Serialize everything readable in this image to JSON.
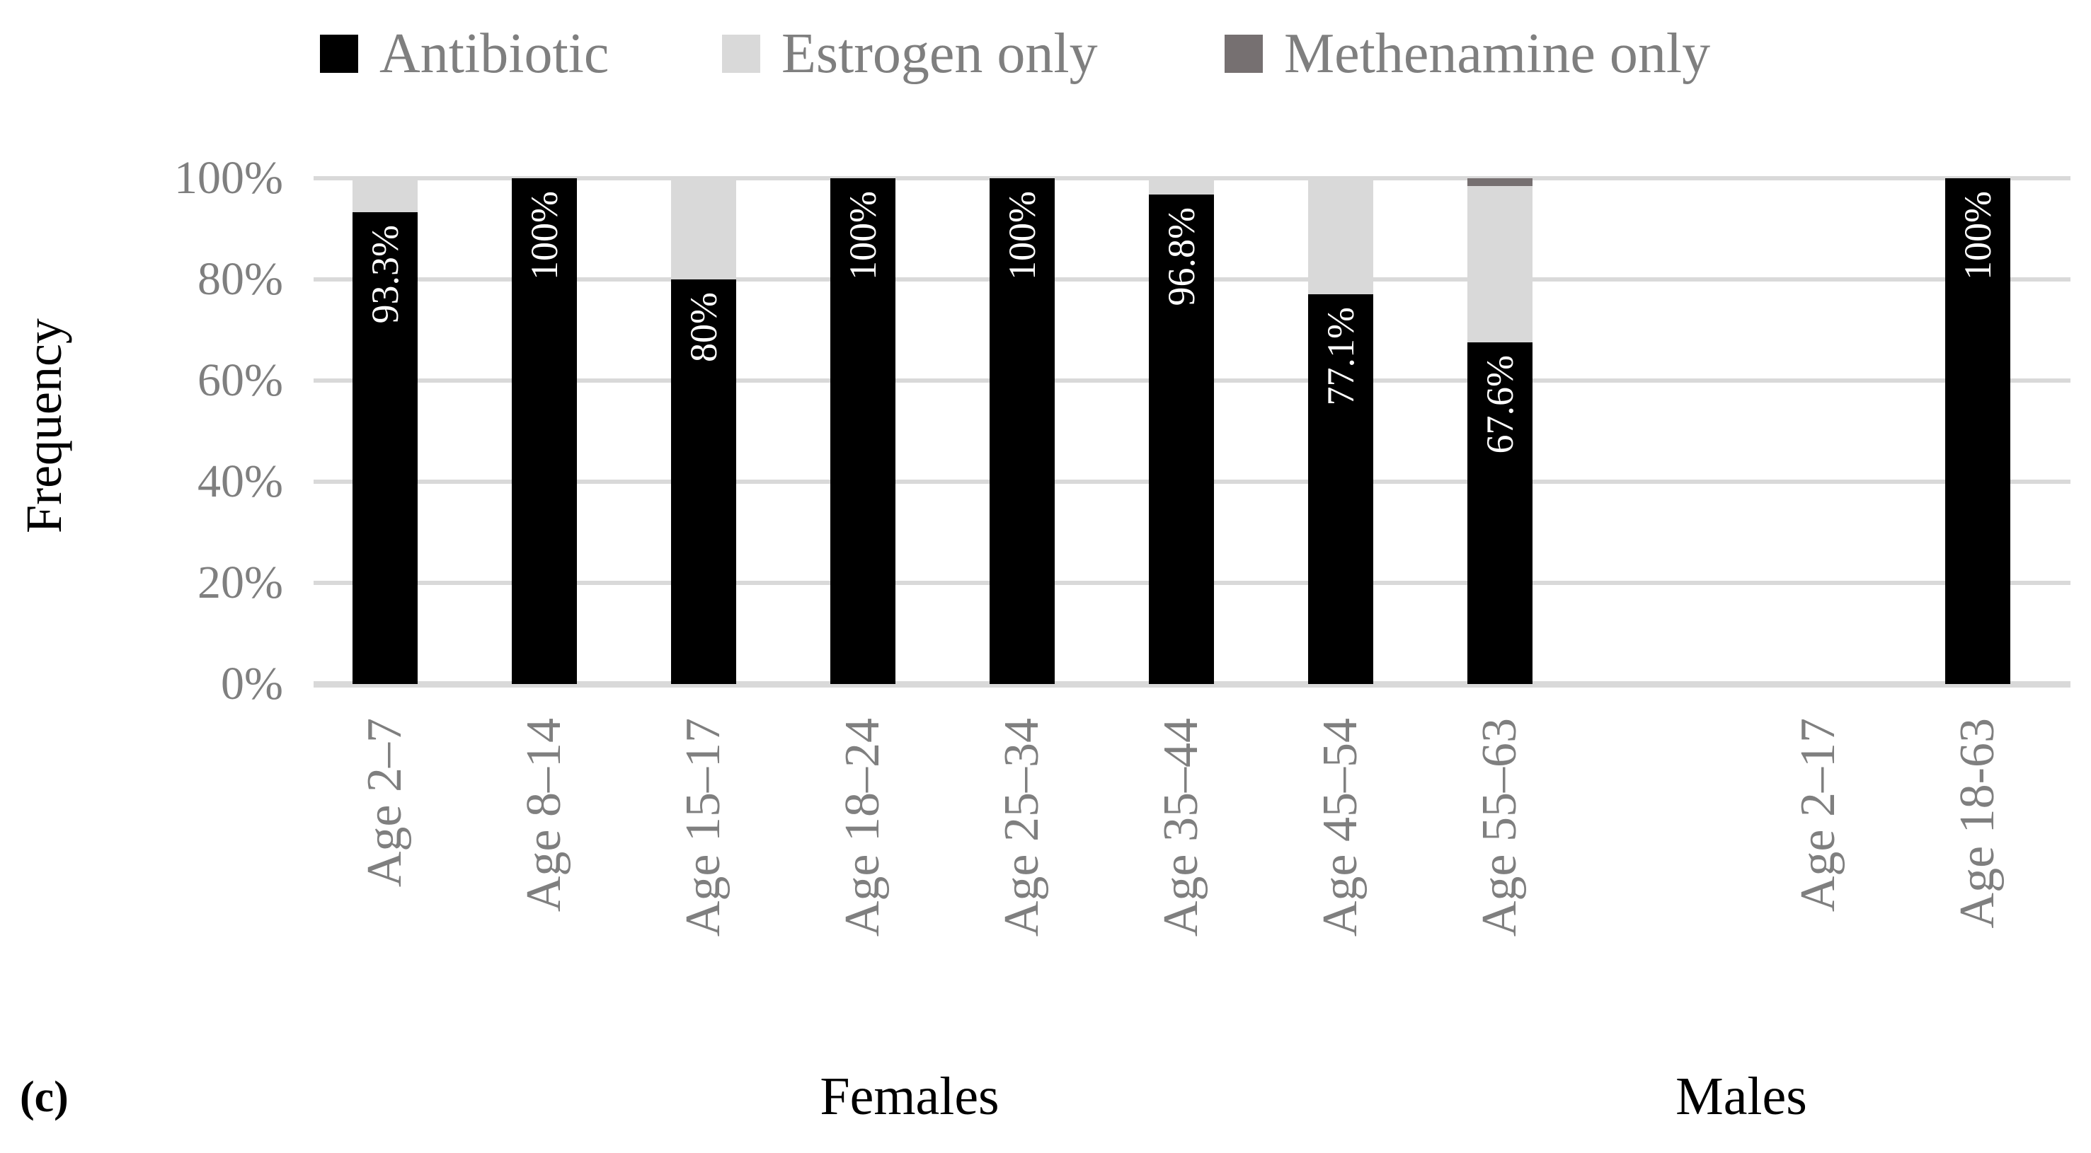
{
  "figure": {
    "panel_label": "(c)"
  },
  "legend": {
    "items": [
      {
        "label": "Antibiotic",
        "color": "#000000"
      },
      {
        "label": "Estrogen only",
        "color": "#d9d9d9"
      },
      {
        "label": "Methenamine only",
        "color": "#767071"
      }
    ]
  },
  "y_axis": {
    "title": "Frequency"
  },
  "footer": {
    "females_label": "Females",
    "males_label": "Males"
  },
  "chart_data": {
    "type": "bar",
    "stacked": true,
    "units": "percent",
    "title": "",
    "xlabel": "",
    "ylabel": "Frequency",
    "ylim": [
      0,
      100
    ],
    "yticks": [
      0,
      20,
      40,
      60,
      80,
      100
    ],
    "ytick_labels": [
      "0%",
      "20%",
      "40%",
      "60%",
      "80%",
      "100%"
    ],
    "grid": "horizontal",
    "legend_position": "top",
    "categories": [
      "Age 2–7",
      "Age 8–14",
      "Age 15–17",
      "Age 18–24",
      "Age 25–34",
      "Age 35–44",
      "Age 45–54",
      "Age 55–63",
      "",
      "Age 2–17",
      "Age 18-63"
    ],
    "category_groups": [
      "Females",
      "Females",
      "Females",
      "Females",
      "Females",
      "Females",
      "Females",
      "Females",
      "",
      "Males",
      "Males"
    ],
    "series": [
      {
        "name": "Antibiotic",
        "color": "#000000",
        "values": [
          93.3,
          100,
          80,
          100,
          100,
          96.8,
          77.1,
          67.6,
          0,
          0,
          100
        ]
      },
      {
        "name": "Estrogen only",
        "color": "#d9d9d9",
        "values": [
          6.7,
          0,
          20,
          0,
          0,
          3.2,
          22.9,
          30.9,
          0,
          0,
          0
        ]
      },
      {
        "name": "Methenamine only",
        "color": "#767071",
        "values": [
          0,
          0,
          0,
          0,
          0,
          0,
          0,
          1.5,
          0,
          0,
          0
        ]
      }
    ],
    "bar_value_labels": [
      "93.3%",
      "100%",
      "80%",
      "100%",
      "100%",
      "96.8%",
      "77.1%",
      "67.6%",
      "",
      "",
      "100%"
    ]
  }
}
